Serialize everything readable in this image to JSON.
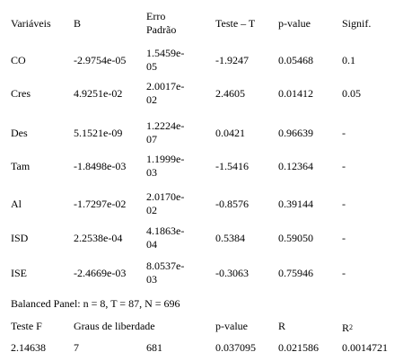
{
  "header": {
    "col1": "Variáveis",
    "col2": "B",
    "col3_line1": "Erro",
    "col3_line2": "Padrão",
    "col4": "Teste – T",
    "col5": "p-value",
    "col6": "Signif."
  },
  "rows": [
    {
      "var": "CO",
      "b": "-2.9754e-05",
      "se1": "1.5459e-",
      "se2": "05",
      "t": "-1.9247",
      "p": "0.05468",
      "sig": "0.1"
    },
    {
      "var": "Cres",
      "b": "4.9251e-02",
      "se1": "2.0017e-",
      "se2": "02",
      "t": "2.4605",
      "p": "0.01412",
      "sig": "0.05"
    },
    {
      "var": "Des",
      "b": "5.1521e-09",
      "se1": "1.2224e-",
      "se2": "07",
      "t": "0.0421",
      "p": "0.96639",
      "sig": "-"
    },
    {
      "var": "Tam",
      "b": "-1.8498e-03",
      "se1": "1.1999e-",
      "se2": "03",
      "t": "-1.5416",
      "p": "0.12364",
      "sig": "-"
    },
    {
      "var": "Al",
      "b": "-1.7297e-02",
      "se1": "2.0170e-",
      "se2": "02",
      "t": "-0.8576",
      "p": "0.39144",
      "sig": "-"
    },
    {
      "var": "ISD",
      "b": "2.2538e-04",
      "se1": "4.1863e-",
      "se2": "04",
      "t": "0.5384",
      "p": "0.59050",
      "sig": "-"
    },
    {
      "var": "ISE",
      "b": "-2.4669e-03",
      "se1": "8.0537e-",
      "se2": "03",
      "t": "-0.3063",
      "p": "0.75946",
      "sig": "-"
    }
  ],
  "panel_note": "Balanced Panel: n = 8, T = 87, N = 696",
  "summary_header": {
    "testf": "Teste F",
    "graus": "Graus de liberdade",
    "pvalue": "p-value",
    "r": "R",
    "r2_base": "R",
    "r2_sup": "2"
  },
  "summary_values": {
    "testf": "2.14638",
    "graus1": "7",
    "graus2": "681",
    "pvalue": "0.037095",
    "r": "0.021586",
    "r2": "0.0014721"
  }
}
